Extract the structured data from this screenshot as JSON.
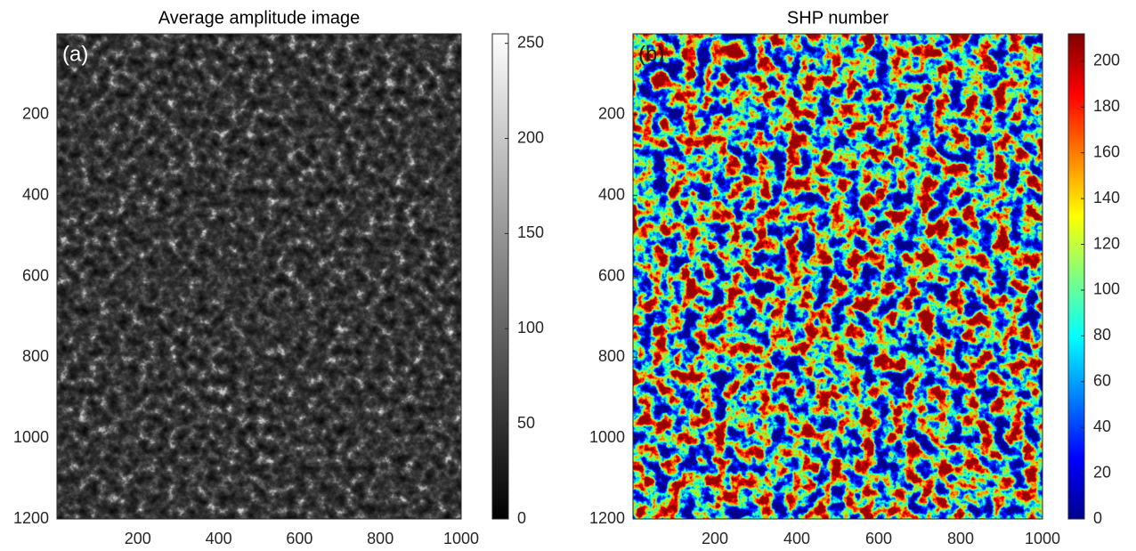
{
  "chart_data": [
    {
      "type": "image",
      "title": "Average amplitude image",
      "panel_label": "(a)",
      "xlim": [
        0,
        1000
      ],
      "ylim": [
        0,
        1200
      ],
      "y_reversed": true,
      "xticks": [
        200,
        400,
        600,
        800,
        1000
      ],
      "yticks": [
        200,
        400,
        600,
        800,
        1000,
        1200
      ],
      "colormap": "gray",
      "clim": [
        0,
        255
      ],
      "cticks": [
        0,
        50,
        100,
        150,
        200,
        250
      ]
    },
    {
      "type": "image",
      "title": "SHP number",
      "panel_label": "(b)",
      "xlim": [
        0,
        1000
      ],
      "ylim": [
        0,
        1200
      ],
      "y_reversed": true,
      "xticks": [
        200,
        400,
        600,
        800,
        1000
      ],
      "yticks": [
        200,
        400,
        600,
        800,
        1000,
        1200
      ],
      "colormap": "jet",
      "clim": [
        0,
        212
      ],
      "cticks": [
        0,
        20,
        40,
        60,
        80,
        100,
        120,
        140,
        160,
        180,
        200
      ]
    }
  ]
}
